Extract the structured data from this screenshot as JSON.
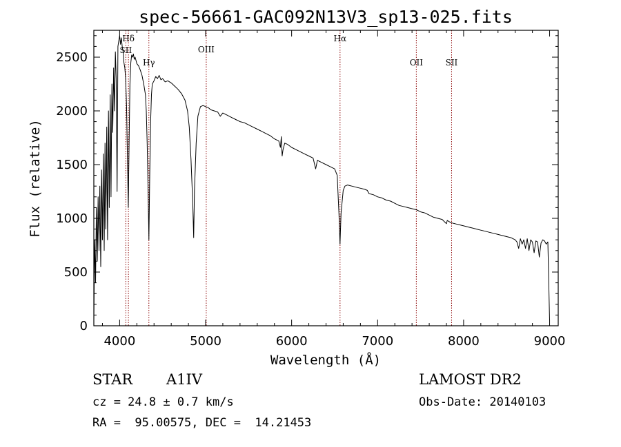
{
  "chart_data": {
    "type": "line",
    "title": "spec-56661-GAC092N13V3_sp13-025.fits",
    "xlabel": "Wavelength (Å)",
    "ylabel": "Flux (relative)",
    "xlim": [
      3700,
      9100
    ],
    "ylim": [
      0,
      2750
    ],
    "xticks": [
      4000,
      5000,
      6000,
      7000,
      8000,
      9000
    ],
    "yticks": [
      0,
      500,
      1000,
      1500,
      2000,
      2500
    ],
    "grid": false,
    "line_color": "#000000",
    "marker_color": "#8b0000",
    "lines": [
      {
        "label": "Hδ",
        "wavelength": 4102
      },
      {
        "label": "SII",
        "wavelength": 4072
      },
      {
        "label": "Hγ",
        "wavelength": 4340
      },
      {
        "label": "OIII",
        "wavelength": 5007
      },
      {
        "label": "Hα",
        "wavelength": 6563
      },
      {
        "label": "OII",
        "wavelength": 7450
      },
      {
        "label": "SII",
        "wavelength": 7860
      }
    ],
    "series": [
      {
        "points": [
          [
            3700,
            50
          ],
          [
            3710,
            800
          ],
          [
            3720,
            400
          ],
          [
            3730,
            1100
          ],
          [
            3740,
            600
          ],
          [
            3750,
            1200
          ],
          [
            3760,
            700
          ],
          [
            3770,
            1300
          ],
          [
            3780,
            550
          ],
          [
            3790,
            1450
          ],
          [
            3800,
            800
          ],
          [
            3810,
            1600
          ],
          [
            3820,
            700
          ],
          [
            3830,
            1700
          ],
          [
            3840,
            900
          ],
          [
            3850,
            1850
          ],
          [
            3860,
            800
          ],
          [
            3870,
            2000
          ],
          [
            3880,
            1100
          ],
          [
            3890,
            2150
          ],
          [
            3900,
            1200
          ],
          [
            3910,
            2250
          ],
          [
            3920,
            1800
          ],
          [
            3930,
            2400
          ],
          [
            3940,
            2000
          ],
          [
            3950,
            2550
          ],
          [
            3960,
            2300
          ],
          [
            3970,
            1250
          ],
          [
            3980,
            2600
          ],
          [
            3990,
            2650
          ],
          [
            4000,
            2700
          ],
          [
            4010,
            2620
          ],
          [
            4020,
            2680
          ],
          [
            4030,
            2600
          ],
          [
            4040,
            2550
          ],
          [
            4050,
            2450
          ],
          [
            4060,
            2400
          ],
          [
            4070,
            2300
          ],
          [
            4080,
            2050
          ],
          [
            4090,
            1600
          ],
          [
            4100,
            1100
          ],
          [
            4110,
            1700
          ],
          [
            4120,
            2250
          ],
          [
            4130,
            2450
          ],
          [
            4140,
            2520
          ],
          [
            4150,
            2500
          ],
          [
            4160,
            2530
          ],
          [
            4170,
            2480
          ],
          [
            4180,
            2500
          ],
          [
            4190,
            2470
          ],
          [
            4200,
            2440
          ],
          [
            4220,
            2420
          ],
          [
            4240,
            2380
          ],
          [
            4260,
            2330
          ],
          [
            4280,
            2250
          ],
          [
            4300,
            2150
          ],
          [
            4310,
            2000
          ],
          [
            4320,
            1700
          ],
          [
            4330,
            1300
          ],
          [
            4340,
            800
          ],
          [
            4350,
            1400
          ],
          [
            4360,
            1900
          ],
          [
            4370,
            2150
          ],
          [
            4380,
            2250
          ],
          [
            4400,
            2280
          ],
          [
            4420,
            2320
          ],
          [
            4440,
            2300
          ],
          [
            4460,
            2330
          ],
          [
            4480,
            2290
          ],
          [
            4500,
            2300
          ],
          [
            4530,
            2270
          ],
          [
            4560,
            2280
          ],
          [
            4600,
            2260
          ],
          [
            4640,
            2230
          ],
          [
            4680,
            2200
          ],
          [
            4720,
            2160
          ],
          [
            4760,
            2100
          ],
          [
            4790,
            2000
          ],
          [
            4810,
            1850
          ],
          [
            4830,
            1550
          ],
          [
            4850,
            1150
          ],
          [
            4861,
            820
          ],
          [
            4870,
            1250
          ],
          [
            4890,
            1700
          ],
          [
            4910,
            1950
          ],
          [
            4940,
            2040
          ],
          [
            4970,
            2050
          ],
          [
            5000,
            2040
          ],
          [
            5030,
            2030
          ],
          [
            5060,
            2010
          ],
          [
            5100,
            2000
          ],
          [
            5140,
            1990
          ],
          [
            5170,
            1950
          ],
          [
            5200,
            1980
          ],
          [
            5250,
            1960
          ],
          [
            5300,
            1940
          ],
          [
            5350,
            1920
          ],
          [
            5400,
            1900
          ],
          [
            5450,
            1890
          ],
          [
            5500,
            1870
          ],
          [
            5550,
            1850
          ],
          [
            5600,
            1830
          ],
          [
            5650,
            1810
          ],
          [
            5700,
            1790
          ],
          [
            5750,
            1770
          ],
          [
            5800,
            1740
          ],
          [
            5850,
            1720
          ],
          [
            5870,
            1660
          ],
          [
            5880,
            1760
          ],
          [
            5890,
            1580
          ],
          [
            5900,
            1640
          ],
          [
            5920,
            1700
          ],
          [
            5950,
            1690
          ],
          [
            6000,
            1660
          ],
          [
            6050,
            1640
          ],
          [
            6100,
            1620
          ],
          [
            6150,
            1600
          ],
          [
            6200,
            1580
          ],
          [
            6250,
            1560
          ],
          [
            6280,
            1460
          ],
          [
            6300,
            1540
          ],
          [
            6350,
            1520
          ],
          [
            6400,
            1500
          ],
          [
            6450,
            1480
          ],
          [
            6500,
            1460
          ],
          [
            6530,
            1400
          ],
          [
            6550,
            1050
          ],
          [
            6563,
            760
          ],
          [
            6575,
            1050
          ],
          [
            6600,
            1260
          ],
          [
            6620,
            1300
          ],
          [
            6650,
            1310
          ],
          [
            6700,
            1300
          ],
          [
            6750,
            1290
          ],
          [
            6800,
            1280
          ],
          [
            6850,
            1270
          ],
          [
            6880,
            1260
          ],
          [
            6900,
            1230
          ],
          [
            6950,
            1220
          ],
          [
            7000,
            1200
          ],
          [
            7050,
            1190
          ],
          [
            7100,
            1170
          ],
          [
            7150,
            1160
          ],
          [
            7200,
            1140
          ],
          [
            7250,
            1120
          ],
          [
            7300,
            1110
          ],
          [
            7350,
            1100
          ],
          [
            7400,
            1090
          ],
          [
            7450,
            1080
          ],
          [
            7500,
            1060
          ],
          [
            7550,
            1050
          ],
          [
            7600,
            1030
          ],
          [
            7650,
            1010
          ],
          [
            7700,
            1000
          ],
          [
            7750,
            990
          ],
          [
            7800,
            950
          ],
          [
            7810,
            980
          ],
          [
            7850,
            960
          ],
          [
            7900,
            950
          ],
          [
            7950,
            940
          ],
          [
            8000,
            930
          ],
          [
            8050,
            920
          ],
          [
            8100,
            910
          ],
          [
            8150,
            900
          ],
          [
            8200,
            890
          ],
          [
            8250,
            880
          ],
          [
            8300,
            870
          ],
          [
            8350,
            860
          ],
          [
            8400,
            850
          ],
          [
            8450,
            840
          ],
          [
            8500,
            830
          ],
          [
            8550,
            820
          ],
          [
            8600,
            800
          ],
          [
            8620,
            780
          ],
          [
            8640,
            720
          ],
          [
            8660,
            810
          ],
          [
            8680,
            760
          ],
          [
            8700,
            800
          ],
          [
            8720,
            720
          ],
          [
            8740,
            810
          ],
          [
            8760,
            700
          ],
          [
            8780,
            800
          ],
          [
            8800,
            780
          ],
          [
            8820,
            680
          ],
          [
            8840,
            790
          ],
          [
            8860,
            780
          ],
          [
            8880,
            640
          ],
          [
            8900,
            770
          ],
          [
            8920,
            800
          ],
          [
            8940,
            790
          ],
          [
            8960,
            760
          ],
          [
            8980,
            780
          ],
          [
            9000,
            50
          ]
        ]
      }
    ]
  },
  "info": {
    "object_type": "STAR",
    "spectral_class": "A1IV",
    "survey": "LAMOST DR2",
    "cz": "cz = 24.8 ± 0.7 km/s",
    "obs_date": "Obs-Date: 20140103",
    "coords": "RA =  95.00575, DEC =  14.21453"
  }
}
